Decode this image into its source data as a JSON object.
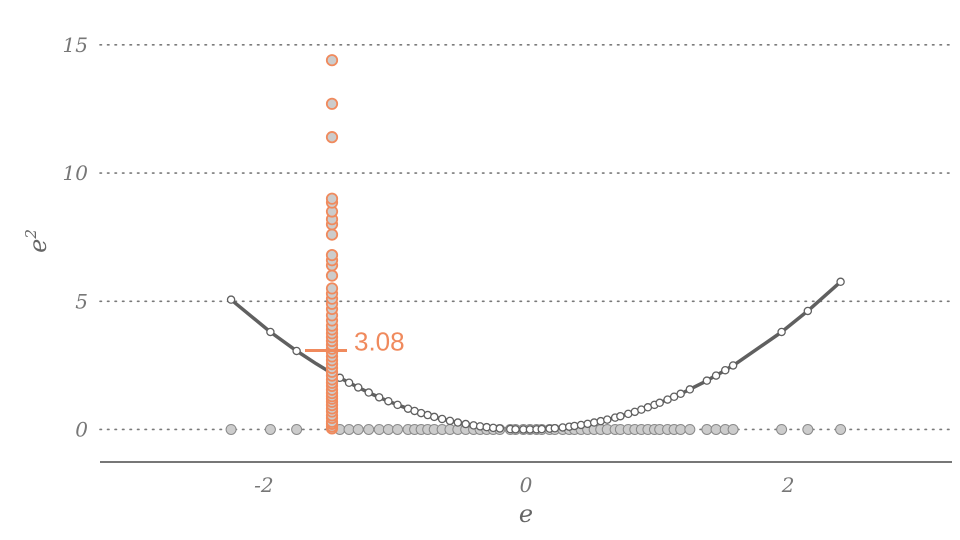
{
  "chart_data": {
    "type": "scatter",
    "title": "",
    "xlabel": "e",
    "ylabel": "e",
    "ylabel_superscript": "2",
    "xlim": [
      -3.25,
      3.25
    ],
    "ylim": [
      -0.8,
      15.5
    ],
    "x_ticks": [
      -2,
      0,
      2
    ],
    "x_tick_labels": [
      "-2",
      "0",
      "2"
    ],
    "y_ticks": [
      0,
      5,
      10,
      15
    ],
    "y_tick_labels": [
      "0",
      "5",
      "10",
      "15"
    ],
    "grid": "horizontal dotted",
    "colors": {
      "highlight": "#F08A5D",
      "curve": "#606060",
      "point_fill": "#cccccc",
      "point_stroke": "#8a8a8a",
      "axis": "#777777"
    },
    "mean_label": "3.08",
    "mean_value": 3.08,
    "highlight_x": -1.48,
    "curve_x": [
      -2.25,
      -1.95,
      -1.75,
      -1.6,
      -1.5,
      -1.42,
      -1.3,
      -1.2,
      -1.1,
      -1.0,
      -0.9,
      -0.8,
      -0.7,
      -0.6,
      -0.5,
      -0.4,
      -0.3,
      -0.2,
      -0.1,
      0.0,
      0.1,
      0.2,
      0.3,
      0.4,
      0.5,
      0.6,
      0.7,
      0.8,
      0.9,
      1.0,
      1.1,
      1.2,
      1.35,
      1.5,
      1.6,
      1.95,
      2.15,
      2.4
    ],
    "residuals_x": [
      -2.25,
      -1.95,
      -1.75,
      -1.42,
      -1.35,
      -1.28,
      -1.2,
      -1.12,
      -1.05,
      -0.98,
      -0.9,
      -0.85,
      -0.8,
      -0.75,
      -0.7,
      -0.64,
      -0.58,
      -0.52,
      -0.46,
      -0.4,
      -0.35,
      -0.3,
      -0.25,
      -0.2,
      -0.12,
      -0.08,
      -0.02,
      0.03,
      0.08,
      0.12,
      0.18,
      0.22,
      0.28,
      0.33,
      0.37,
      0.42,
      0.47,
      0.52,
      0.57,
      0.62,
      0.68,
      0.72,
      0.78,
      0.83,
      0.88,
      0.93,
      0.98,
      1.02,
      1.08,
      1.13,
      1.18,
      1.25,
      1.38,
      1.45,
      1.52,
      1.58,
      1.95,
      2.15,
      2.4
    ],
    "highlight_points_y": [
      0.04,
      0.12,
      0.22,
      0.3,
      0.45,
      0.55,
      0.7,
      0.82,
      0.95,
      1.08,
      1.2,
      1.3,
      1.42,
      1.55,
      1.7,
      1.82,
      1.95,
      2.1,
      2.25,
      2.4,
      2.55,
      2.7,
      2.85,
      3.0,
      3.15,
      3.3,
      3.45,
      3.6,
      3.75,
      3.9,
      4.05,
      4.25,
      4.45,
      4.7,
      4.9,
      5.1,
      5.3,
      5.5,
      6.0,
      6.4,
      6.6,
      6.8,
      7.6,
      8.0,
      8.2,
      8.5,
      8.85,
      9.0,
      11.4,
      12.7,
      14.4
    ]
  }
}
